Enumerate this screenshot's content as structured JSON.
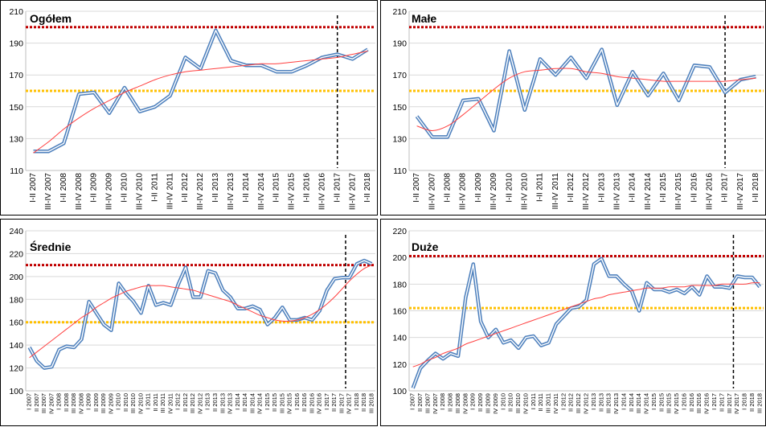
{
  "chart_data": [
    {
      "type": "line",
      "title": "Ogółem",
      "ylim": [
        110,
        210
      ],
      "yticks": [
        110,
        130,
        150,
        170,
        190,
        210
      ],
      "x": [
        "I-II 2007",
        "III-IV 2007",
        "I-II 2008",
        "III-IV 2008",
        "I-II 2009",
        "III-IV 2009",
        "I-II 2010",
        "III-IV 2010",
        "I-II 2011",
        "III-IV 2011",
        "I-II 2012",
        "III-IV 2012",
        "I-II 2013",
        "III-IV 2013",
        "I-II 2014",
        "III-IV 2014",
        "I-II 2015",
        "III-IV 2015",
        "I-II 2016",
        "III-IV 2016",
        "I-II 2017",
        "III-IV 2017",
        "I-II 2018"
      ],
      "values": [
        122,
        122,
        127,
        158,
        159,
        146,
        162,
        147,
        150,
        157,
        181,
        174,
        198,
        179,
        176,
        176,
        172,
        172,
        176,
        181,
        183,
        180,
        186
      ],
      "trend": [
        121,
        128,
        136,
        143,
        149,
        154,
        159,
        163,
        167,
        170,
        172,
        173,
        174,
        175,
        176,
        177,
        177,
        178,
        179,
        180,
        181,
        183,
        185
      ],
      "hlines": [
        {
          "y": 200,
          "color": "#c00000"
        },
        {
          "y": 160,
          "color": "#ffc000"
        }
      ],
      "vline_x": 20,
      "grid": true,
      "legend": "none"
    },
    {
      "type": "line",
      "title": "Małe",
      "ylim": [
        110,
        210
      ],
      "yticks": [
        110,
        130,
        150,
        170,
        190,
        210
      ],
      "x": [
        "I-II 2007",
        "III-IV 2007",
        "I-II 2008",
        "III-IV 2008",
        "I-II 2009",
        "III-IV 2009",
        "I-II 2010",
        "III-IV 2010",
        "I-II 2011",
        "III-IV 2011",
        "I-II 2012",
        "III-IV 2012",
        "I-II 2013",
        "III-IV 2013",
        "I-II 2014",
        "III-IV 2014",
        "I-II 2015",
        "III-IV 2015",
        "I-II 2016",
        "III-IV 2016",
        "I-II 2017",
        "III-IV 2017",
        "I-II 2018"
      ],
      "values": [
        144,
        131,
        131,
        154,
        155,
        135,
        185,
        148,
        180,
        170,
        181,
        168,
        186,
        151,
        172,
        157,
        171,
        154,
        176,
        175,
        159,
        167,
        169
      ],
      "trend": [
        138,
        135,
        138,
        145,
        153,
        161,
        168,
        172,
        173,
        174,
        174,
        172,
        171,
        169,
        168,
        167,
        166,
        166,
        166,
        166,
        166,
        167,
        168
      ],
      "hlines": [
        {
          "y": 200,
          "color": "#c00000"
        },
        {
          "y": 160,
          "color": "#ffc000"
        }
      ],
      "vline_x": 20,
      "grid": true,
      "legend": "none"
    },
    {
      "type": "line",
      "title": "Średnie",
      "ylim": [
        100,
        240
      ],
      "yticks": [
        100,
        120,
        140,
        160,
        180,
        200,
        220,
        240
      ],
      "x": [
        "I 2007",
        "II 2007",
        "III 2007",
        "IV 2007",
        "I 2008",
        "II 2008",
        "III 2008",
        "IV 2008",
        "I 2009",
        "II 2009",
        "III 2009",
        "IV 2009",
        "I 2010",
        "II 2010",
        "III 2010",
        "IV 2010",
        "I 2011",
        "II 2011",
        "III 2011",
        "IV 2011",
        "I 2012",
        "II 2012",
        "III 2012",
        "IV 2012",
        "I 2013",
        "II 2013",
        "III 2013",
        "IV 2013",
        "I 2014",
        "II 2014",
        "III 2014",
        "IV 2014",
        "I 2015",
        "II 2015",
        "III 2015",
        "IV 2015",
        "I 2016",
        "II 2016",
        "III 2016",
        "IV 2016",
        "I 2017",
        "II 2017",
        "III 2017",
        "IV 2017",
        "I 2018",
        "II 2018",
        "III 2018"
      ],
      "values": [
        138,
        126,
        120,
        121,
        136,
        139,
        138,
        145,
        178,
        168,
        158,
        153,
        194,
        185,
        178,
        168,
        192,
        175,
        177,
        175,
        193,
        208,
        182,
        182,
        205,
        203,
        188,
        182,
        172,
        172,
        174,
        171,
        158,
        164,
        173,
        162,
        162,
        164,
        162,
        170,
        188,
        198,
        199,
        199,
        211,
        214,
        211
      ],
      "trend": [
        129,
        134,
        139,
        144,
        149,
        154,
        159,
        164,
        168,
        173,
        177,
        181,
        184,
        187,
        189,
        191,
        192,
        192,
        192,
        191,
        190,
        189,
        188,
        186,
        184,
        182,
        180,
        178,
        175,
        172,
        169,
        166,
        164,
        162,
        161,
        161,
        162,
        164,
        167,
        171,
        176,
        182,
        189,
        196,
        202,
        207,
        210
      ],
      "hlines": [
        {
          "y": 210,
          "color": "#c00000"
        },
        {
          "y": 160,
          "color": "#ffc000"
        }
      ],
      "vline_x": 42.5,
      "grid": true,
      "legend": "none"
    },
    {
      "type": "line",
      "title": "Duże",
      "ylim": [
        100,
        220
      ],
      "yticks": [
        100,
        120,
        140,
        160,
        180,
        200,
        220
      ],
      "x": [
        "I 2007",
        "II 2007",
        "III 2007",
        "IV 2007",
        "I 2008",
        "II 2008",
        "III 2008",
        "IV 2008",
        "I 2009",
        "II 2009",
        "III 2009",
        "IV 2009",
        "I 2010",
        "II 2010",
        "III 2010",
        "IV 2010",
        "I 2011",
        "II 2011",
        "III 2011",
        "IV 2011",
        "I 2012",
        "II 2012",
        "III 2012",
        "IV 2012",
        "I 2013",
        "II 2013",
        "III 2013",
        "IV 2013",
        "I 2014",
        "II 2014",
        "III 2014",
        "IV 2014",
        "I 2015",
        "II 2015",
        "III 2015",
        "IV 2015",
        "I 2016",
        "II 2016",
        "III 2016",
        "IV 2016",
        "I 2017",
        "II 2017",
        "III 2017",
        "IV 2017",
        "I 2018",
        "II 2018",
        "III 2018"
      ],
      "values": [
        102,
        117,
        123,
        128,
        124,
        128,
        126,
        170,
        195,
        152,
        140,
        146,
        136,
        138,
        132,
        140,
        141,
        134,
        136,
        150,
        156,
        162,
        163,
        168,
        195,
        199,
        186,
        186,
        180,
        175,
        160,
        181,
        176,
        176,
        174,
        176,
        173,
        178,
        172,
        186,
        178,
        178,
        177,
        186,
        185,
        185,
        178
      ],
      "trend": [
        118,
        120,
        123,
        125,
        128,
        130,
        132,
        135,
        137,
        139,
        141,
        143,
        145,
        147,
        149,
        151,
        153,
        155,
        157,
        159,
        161,
        163,
        165,
        167,
        169,
        170,
        172,
        173,
        174,
        175,
        176,
        177,
        177,
        177,
        178,
        178,
        178,
        179,
        179,
        179,
        179,
        180,
        180,
        180,
        180,
        181,
        181
      ],
      "hlines": [
        {
          "y": 201,
          "color": "#c00000"
        },
        {
          "y": 162,
          "color": "#ffc000"
        }
      ],
      "vline_x": 42.5,
      "grid": true,
      "legend": "none"
    }
  ]
}
